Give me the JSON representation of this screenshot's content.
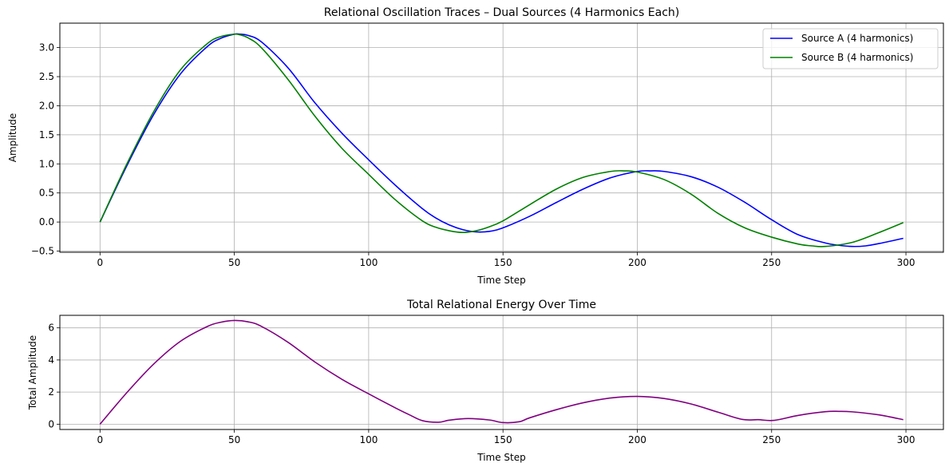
{
  "chart_data": [
    {
      "type": "line",
      "title": "Relational Oscillation Traces – Dual Sources (4 Harmonics Each)",
      "xlabel": "Time Step",
      "ylabel": "Amplitude",
      "xlim": [
        -14.95,
        313.95
      ],
      "ylim": [
        -0.52,
        3.42
      ],
      "xticks": [
        0,
        50,
        100,
        150,
        200,
        250,
        300
      ],
      "xtick_labels": [
        "0",
        "50",
        "100",
        "150",
        "200",
        "250",
        "300"
      ],
      "yticks": [
        -0.5,
        0.0,
        0.5,
        1.0,
        1.5,
        2.0,
        2.5,
        3.0
      ],
      "ytick_labels": [
        "−0.5",
        "0.0",
        "0.5",
        "1.0",
        "1.5",
        "2.0",
        "2.5",
        "3.0"
      ],
      "grid": true,
      "legend_position": "top-right",
      "series": [
        {
          "name": "Source A (4 harmonics)",
          "color": "#0000ff",
          "x": [
            0,
            10,
            20,
            30,
            40,
            45,
            50,
            52,
            55,
            60,
            70,
            80,
            90,
            100,
            110,
            120,
            125,
            130,
            135,
            140,
            145,
            150,
            160,
            170,
            180,
            190,
            200,
            205,
            210,
            220,
            230,
            240,
            250,
            260,
            270,
            275,
            280,
            285,
            290,
            299
          ],
          "y": [
            0.0,
            0.97,
            1.85,
            2.55,
            3.02,
            3.16,
            3.23,
            3.23,
            3.21,
            3.1,
            2.65,
            2.05,
            1.53,
            1.07,
            0.63,
            0.23,
            0.07,
            -0.05,
            -0.13,
            -0.17,
            -0.16,
            -0.1,
            0.1,
            0.34,
            0.57,
            0.76,
            0.87,
            0.88,
            0.87,
            0.78,
            0.6,
            0.34,
            0.04,
            -0.22,
            -0.36,
            -0.4,
            -0.42,
            -0.41,
            -0.37,
            -0.28
          ]
        },
        {
          "name": "Source B (4 harmonics)",
          "color": "#008000",
          "x": [
            0,
            10,
            20,
            30,
            40,
            45,
            50,
            52,
            55,
            60,
            70,
            80,
            90,
            100,
            110,
            120,
            125,
            130,
            135,
            140,
            145,
            150,
            160,
            170,
            180,
            190,
            195,
            200,
            210,
            220,
            230,
            240,
            250,
            260,
            265,
            270,
            280,
            290,
            299
          ],
          "y": [
            0.0,
            1.0,
            1.9,
            2.62,
            3.07,
            3.19,
            3.23,
            3.22,
            3.17,
            3.0,
            2.45,
            1.82,
            1.27,
            0.82,
            0.38,
            0.02,
            -0.09,
            -0.15,
            -0.18,
            -0.15,
            -0.08,
            0.02,
            0.3,
            0.57,
            0.77,
            0.87,
            0.88,
            0.86,
            0.73,
            0.48,
            0.15,
            -0.1,
            -0.26,
            -0.38,
            -0.41,
            -0.42,
            -0.35,
            -0.18,
            -0.01
          ]
        }
      ]
    },
    {
      "type": "line",
      "title": "Total Relational Energy Over Time",
      "xlabel": "Time Step",
      "ylabel": "Total Amplitude",
      "xlim": [
        -14.95,
        313.95
      ],
      "ylim": [
        -0.33,
        6.78
      ],
      "xticks": [
        0,
        50,
        100,
        150,
        200,
        250,
        300
      ],
      "xtick_labels": [
        "0",
        "50",
        "100",
        "150",
        "200",
        "250",
        "300"
      ],
      "yticks": [
        0,
        2,
        4,
        6
      ],
      "ytick_labels": [
        "0",
        "2",
        "4",
        "6"
      ],
      "grid": true,
      "series": [
        {
          "color": "#800080",
          "x": [
            0,
            10,
            20,
            30,
            40,
            45,
            50,
            55,
            60,
            70,
            80,
            90,
            100,
            110,
            115,
            120,
            126,
            130,
            137,
            145,
            150,
            156,
            160,
            170,
            180,
            190,
            200,
            210,
            220,
            230,
            239,
            245,
            251,
            260,
            270,
            275,
            280,
            290,
            299
          ],
          "y": [
            0.0,
            1.97,
            3.75,
            5.17,
            6.09,
            6.35,
            6.46,
            6.38,
            6.1,
            5.1,
            3.87,
            2.8,
            1.89,
            1.01,
            0.6,
            0.22,
            0.12,
            0.25,
            0.35,
            0.26,
            0.1,
            0.15,
            0.4,
            0.91,
            1.34,
            1.63,
            1.73,
            1.6,
            1.26,
            0.75,
            0.3,
            0.28,
            0.24,
            0.55,
            0.78,
            0.8,
            0.77,
            0.58,
            0.28
          ]
        }
      ]
    }
  ]
}
